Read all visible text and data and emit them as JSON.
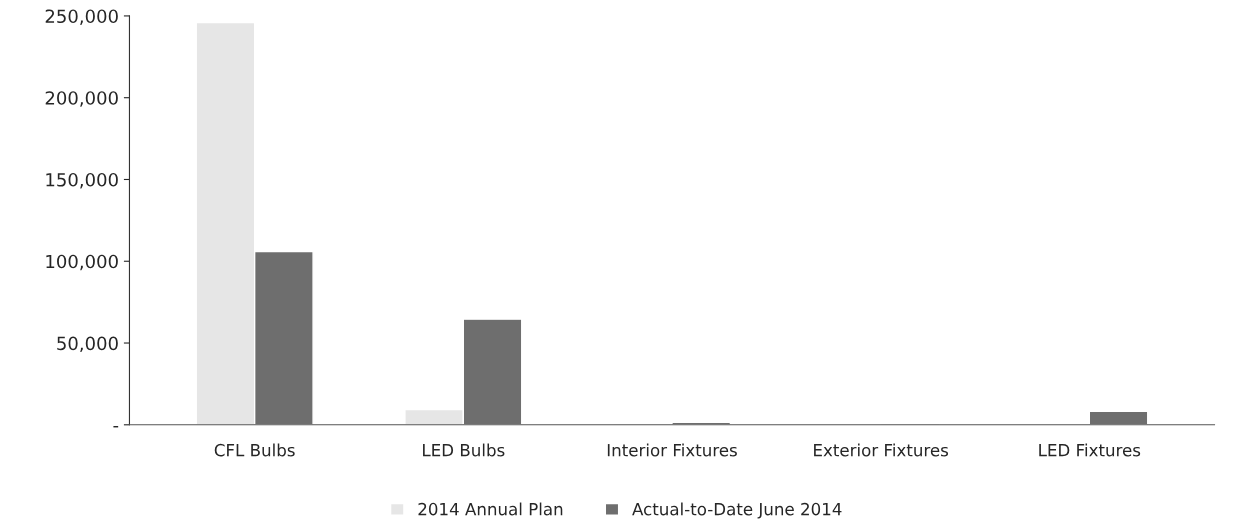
{
  "chart_data": {
    "type": "bar",
    "categories": [
      "CFL Bulbs",
      "LED Bulbs",
      "Interior Fixtures",
      "Exterior Fixtures",
      "LED Fixtures"
    ],
    "series": [
      {
        "name": "2014 Annual Plan",
        "color": "#e6e6e6",
        "values": [
          246000,
          9300,
          500,
          300,
          300
        ]
      },
      {
        "name": "Actual-to-Date June 2014",
        "color": "#6e6e6e",
        "values": [
          106000,
          64600,
          1500,
          300,
          8200
        ]
      }
    ],
    "ylim": [
      0,
      250000
    ],
    "yticks": [
      {
        "value": 0,
        "label": "-"
      },
      {
        "value": 50000,
        "label": "50,000"
      },
      {
        "value": 100000,
        "label": "100,000"
      },
      {
        "value": 150000,
        "label": "150,000"
      },
      {
        "value": 200000,
        "label": "200,000"
      },
      {
        "value": 250000,
        "label": "250,000"
      }
    ],
    "legend": "bottom",
    "grid": false
  }
}
